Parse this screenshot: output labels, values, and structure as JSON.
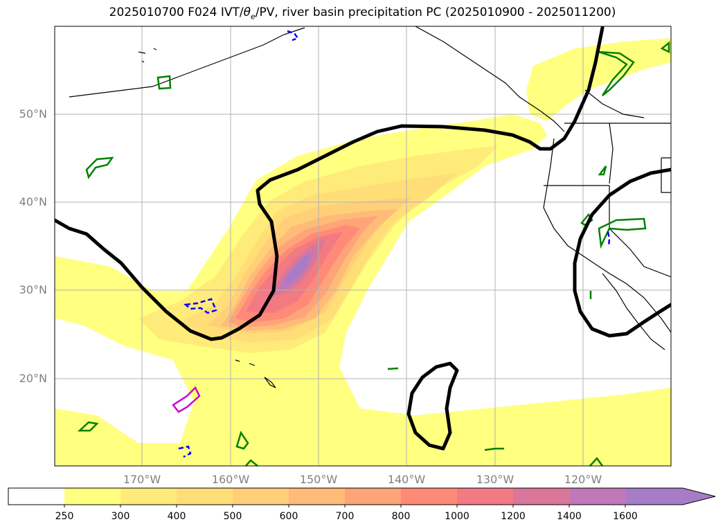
{
  "title": {
    "prefix": "2025010700 F024 IVT/",
    "theta": "θ",
    "sub": "e",
    "suffix": "/PV, river basin precipitation PC (2025010900 - 2025011200)"
  },
  "axes": {
    "lat_labels": [
      "50°N",
      "40°N",
      "30°N",
      "20°N"
    ],
    "lon_labels": [
      "170°W",
      "160°W",
      "150°W",
      "140°W",
      "130°W",
      "120°W"
    ]
  },
  "colorbar": {
    "levels": [
      "250",
      "300",
      "400",
      "500",
      "600",
      "700",
      "800",
      "1000",
      "1200",
      "1400",
      "1600"
    ],
    "colors": [
      "#ffff80",
      "#ffeb7a",
      "#ffde78",
      "#ffd078",
      "#ffbb78",
      "#ffa478",
      "#ff8a78",
      "#f27a82",
      "#d9779a",
      "#c079b8",
      "#a67cc7"
    ],
    "extend": "max"
  },
  "colors": {
    "ivt_low": "#ffff80",
    "ivt_high": "#a67cc7",
    "theta_contour": "#000000",
    "pv_positive": "#008000",
    "pv_negative": "#0000ff",
    "precip_contour": "#cc00cc",
    "grid": "#b0b0b0",
    "coastline": "#000000"
  }
}
